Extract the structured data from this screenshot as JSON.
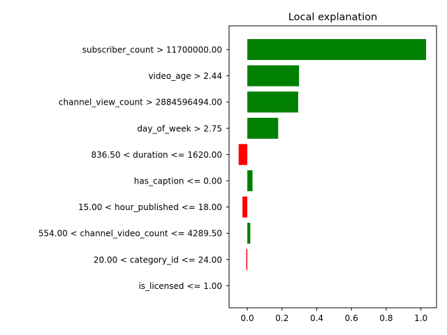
{
  "chart_data": {
    "type": "bar",
    "orientation": "horizontal",
    "title": "Local explanation",
    "xlabel": "",
    "ylabel": "",
    "xlim": [
      -0.105,
      1.09
    ],
    "xticks": [
      0.0,
      0.2,
      0.4,
      0.6,
      0.8,
      1.0
    ],
    "xtick_labels": [
      "0.0",
      "0.2",
      "0.4",
      "0.6",
      "0.8",
      "1.0"
    ],
    "grid": false,
    "legend": null,
    "positive_color": "#008000",
    "negative_color": "#ff0000",
    "categories": [
      "subscriber_count > 11700000.00",
      "video_age > 2.44",
      "channel_view_count > 2884596494.00",
      "day_of_week > 2.75",
      "836.50 < duration <= 1620.00",
      "has_caption <= 0.00",
      "15.00 < hour_published <= 18.00",
      "554.00 < channel_video_count <= 4289.50",
      "20.00 < category_id <= 24.00",
      "is_licensed <= 1.00"
    ],
    "values": [
      1.03,
      0.298,
      0.293,
      0.178,
      -0.05,
      0.03,
      -0.028,
      0.017,
      -0.006,
      0.0
    ]
  }
}
